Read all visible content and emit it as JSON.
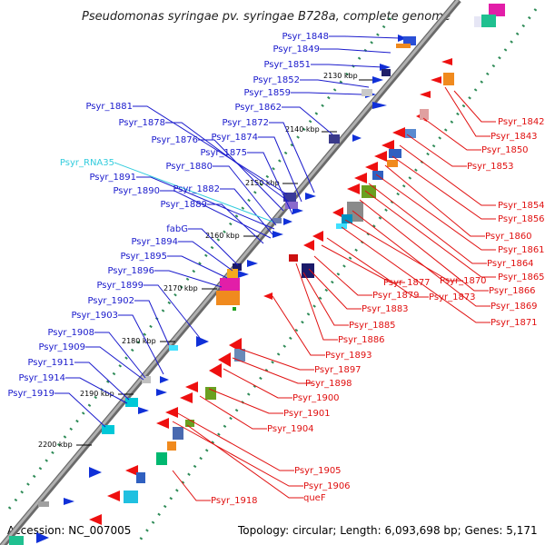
{
  "title": "Pseudomonas syringae pv. syringae B728a, complete genome",
  "footer": {
    "accession": "Accession: NC_007005",
    "stats": "Topology: circular; Length: 6,093,698 bp; Genes: 5,171"
  },
  "colors": {
    "backbone": "#8c8c8c",
    "plus_strand_label": "#1a1acc",
    "minus_strand_label": "#e01010",
    "rna_label": "#33ccdd",
    "tick": "#2e8b57",
    "forward_feature": "#1030d8",
    "reverse_feature": "#ee1010"
  },
  "ruler": [
    "2130 kbp",
    "2140 kbp",
    "2150 kbp",
    "2160 kbp",
    "2170 kbp",
    "2180 kbp",
    "2190 kbp",
    "2200 kbp"
  ],
  "left_labels": [
    "Psyr_1848",
    "Psyr_1849",
    "Psyr_1851",
    "Psyr_1852",
    "Psyr_1859",
    "Psyr_1862",
    "Psyr_1881",
    "Psyr_1878",
    "Psyr_1872",
    "Psyr_1876",
    "Psyr_1874",
    "Psyr_1875",
    "Psyr_RNA35",
    "Psyr_1880",
    "Psyr_1891",
    "Psyr_1890",
    "Psyr_1882",
    "Psyr_1889",
    "fabG",
    "Psyr_1894",
    "Psyr_1895",
    "Psyr_1896",
    "Psyr_1899",
    "Psyr_1902",
    "Psyr_1903",
    "Psyr_1908",
    "Psyr_1909",
    "Psyr_1911",
    "Psyr_1914",
    "Psyr_1919"
  ],
  "right_labels": [
    "Psyr_1842",
    "Psyr_1843",
    "Psyr_1850",
    "Psyr_1853",
    "Psyr_1854",
    "Psyr_1856",
    "Psyr_1860",
    "Psyr_1861",
    "Psyr_1864",
    "Psyr_1865",
    "Psyr_1866",
    "Psyr_1869",
    "Psyr_1870",
    "Psyr_1871",
    "Psyr_1873",
    "Psyr_1877",
    "Psyr_1879",
    "Psyr_1883",
    "Psyr_1885",
    "Psyr_1886",
    "Psyr_1893",
    "Psyr_1897",
    "Psyr_1898",
    "Psyr_1900",
    "Psyr_1901",
    "Psyr_1904",
    "Psyr_1905",
    "Psyr_1906",
    "queF",
    "Psyr_1918"
  ]
}
